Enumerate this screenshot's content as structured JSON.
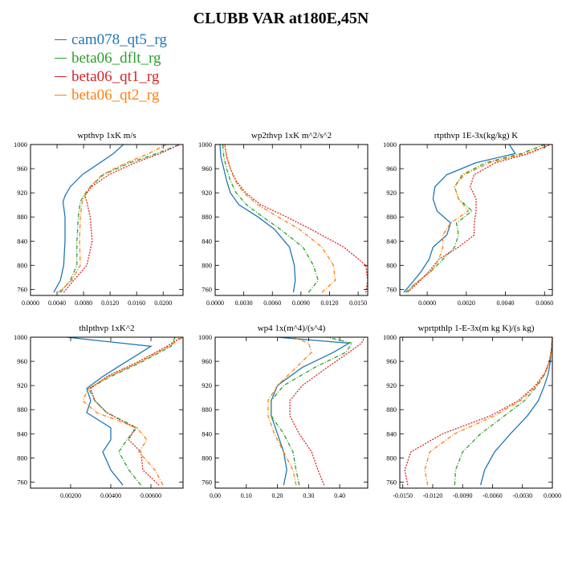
{
  "figure": {
    "title": "CLUBB VAR at180E,45N",
    "legend": [
      {
        "label": "cam078_qt5_rg",
        "color": "#1f77b4"
      },
      {
        "label": "beta06_dflt_rg",
        "color": "#2ca02c"
      },
      {
        "label": "beta06_qt1_rg",
        "color": "#d62728"
      },
      {
        "label": "beta06_qt2_rg",
        "color": "#ff7f0e"
      }
    ]
  },
  "chart_data": [
    {
      "type": "line",
      "title": "wpthvp   1xK m/s",
      "xlim": [
        0,
        0.023
      ],
      "ylim": [
        1000,
        750
      ],
      "xticks": [
        "0.0000",
        "0.0040",
        "0.0080",
        "0.0120",
        "0.0160",
        "0.0200"
      ],
      "xtick_values": [
        0,
        0.004,
        0.008,
        0.012,
        0.016,
        0.02
      ],
      "yticks": [
        "760",
        "800",
        "840",
        "880",
        "920",
        "960",
        "1000"
      ],
      "ytick_values": [
        760,
        800,
        840,
        880,
        920,
        960,
        1000
      ],
      "y": [
        755,
        775,
        800,
        840,
        880,
        905,
        915,
        930,
        950,
        970,
        985,
        1000
      ],
      "series": [
        {
          "name": "cam078_qt5_rg",
          "color": "#1f77b4",
          "style": "solid",
          "values": [
            0.0035,
            0.0045,
            0.005,
            0.0052,
            0.0052,
            0.0049,
            0.0052,
            0.006,
            0.0078,
            0.0105,
            0.0125,
            0.014
          ]
        },
        {
          "name": "beta06_dflt_rg",
          "color": "#2ca02c",
          "style": "dashdot",
          "values": [
            0.0045,
            0.006,
            0.007,
            0.007,
            0.0072,
            0.0075,
            0.008,
            0.009,
            0.011,
            0.015,
            0.019,
            0.0225
          ]
        },
        {
          "name": "beta06_qt1_rg",
          "color": "#d62728",
          "style": "dotted",
          "values": [
            0.005,
            0.0065,
            0.0085,
            0.0093,
            0.009,
            0.0085,
            0.0082,
            0.0092,
            0.0118,
            0.0158,
            0.0195,
            0.0225
          ]
        },
        {
          "name": "beta06_qt2_rg",
          "color": "#ff7f0e",
          "style": "dashdot",
          "values": [
            0.0042,
            0.0062,
            0.0075,
            0.0074,
            0.0075,
            0.0078,
            0.0082,
            0.009,
            0.0108,
            0.0145,
            0.0178,
            0.0205
          ]
        }
      ]
    },
    {
      "type": "line",
      "title": "wp2thvp   1xK m^2/s^2",
      "xlim": [
        0,
        0.016
      ],
      "ylim": [
        1000,
        750
      ],
      "xticks": [
        "0.0000",
        "0.0030",
        "0.0060",
        "0.0090",
        "0.0120",
        "0.0150"
      ],
      "xtick_values": [
        0,
        0.003,
        0.006,
        0.009,
        0.012,
        0.015
      ],
      "yticks": [
        "760",
        "800",
        "840",
        "880",
        "920",
        "960",
        "1000"
      ],
      "ytick_values": [
        760,
        800,
        840,
        880,
        920,
        960,
        1000
      ],
      "y": [
        755,
        775,
        800,
        830,
        860,
        880,
        900,
        920,
        940,
        960,
        980,
        1000
      ],
      "series": [
        {
          "name": "cam078_qt5_rg",
          "color": "#1f77b4",
          "style": "solid",
          "values": [
            0.0082,
            0.0084,
            0.0083,
            0.0078,
            0.0062,
            0.0045,
            0.0025,
            0.0016,
            0.0012,
            0.0009,
            0.0006,
            0.0005
          ]
        },
        {
          "name": "beta06_dflt_rg",
          "color": "#2ca02c",
          "style": "dashdot",
          "values": [
            0.0098,
            0.0108,
            0.0103,
            0.0092,
            0.0068,
            0.005,
            0.0033,
            0.0022,
            0.0016,
            0.0012,
            0.0009,
            0.0008
          ]
        },
        {
          "name": "beta06_qt1_rg",
          "color": "#d62728",
          "style": "dotted",
          "values": [
            0.0158,
            0.016,
            0.0158,
            0.0135,
            0.01,
            0.0075,
            0.0048,
            0.0032,
            0.0022,
            0.0016,
            0.0012,
            0.001
          ]
        },
        {
          "name": "beta06_qt2_rg",
          "color": "#ff7f0e",
          "style": "dashdot",
          "values": [
            0.0112,
            0.0126,
            0.0124,
            0.0112,
            0.0088,
            0.0066,
            0.0045,
            0.003,
            0.0021,
            0.0016,
            0.0012,
            0.001
          ]
        }
      ]
    },
    {
      "type": "line",
      "title": "rtpthvp   1E-3x(kg/kg) K",
      "xlim": [
        -0.0014,
        0.0064
      ],
      "ylim": [
        1000,
        750
      ],
      "xticks": [
        "0.0000",
        "0.0020",
        "0.0040",
        "0.0060"
      ],
      "xtick_values": [
        0,
        0.002,
        0.004,
        0.006
      ],
      "yticks": [
        "760",
        "800",
        "840",
        "880",
        "920",
        "960",
        "1000"
      ],
      "ytick_values": [
        760,
        800,
        840,
        880,
        920,
        960,
        1000
      ],
      "y": [
        755,
        770,
        790,
        810,
        830,
        850,
        870,
        890,
        910,
        930,
        950,
        970,
        985,
        1000
      ],
      "series": [
        {
          "name": "cam078_qt5_rg",
          "color": "#1f77b4",
          "style": "solid",
          "values": [
            -0.0012,
            -0.0008,
            -0.0003,
            0.0001,
            0.0003,
            0.001,
            0.0012,
            0.0005,
            0.0003,
            0.0004,
            0.001,
            0.0025,
            0.0045,
            0.0042
          ]
        },
        {
          "name": "beta06_dflt_rg",
          "color": "#2ca02c",
          "style": "dashdot",
          "values": [
            -0.0011,
            -0.0006,
            0.0002,
            0.0008,
            0.0014,
            0.0016,
            0.0015,
            0.0023,
            0.0016,
            0.0014,
            0.0018,
            0.003,
            0.0048,
            0.006
          ]
        },
        {
          "name": "beta06_qt1_rg",
          "color": "#d62728",
          "style": "dotted",
          "values": [
            -0.001,
            -0.0005,
            0.0001,
            0.0006,
            0.0016,
            0.0024,
            0.0024,
            0.0025,
            0.0025,
            0.0022,
            0.0024,
            0.0035,
            0.0052,
            0.0063
          ]
        },
        {
          "name": "beta06_qt2_rg",
          "color": "#ff7f0e",
          "style": "dashdot",
          "values": [
            -0.001,
            -0.0006,
            0.0002,
            0.0006,
            0.0008,
            0.0008,
            0.0012,
            0.0021,
            0.0016,
            0.0014,
            0.0019,
            0.0032,
            0.005,
            0.0063
          ]
        }
      ]
    },
    {
      "type": "line",
      "title": "thlpthvp   1xK^2",
      "xlim": [
        0,
        0.0076
      ],
      "ylim": [
        1000,
        750
      ],
      "xticks": [
        "0.00200",
        "0.00400",
        "0.00600"
      ],
      "xtick_values": [
        0.002,
        0.004,
        0.006
      ],
      "yticks": [
        "760",
        "800",
        "840",
        "880",
        "920",
        "960",
        "1000"
      ],
      "ytick_values": [
        760,
        800,
        840,
        880,
        920,
        960,
        1000
      ],
      "y": [
        755,
        780,
        810,
        830,
        850,
        875,
        895,
        915,
        935,
        960,
        985,
        1000
      ],
      "series": [
        {
          "name": "cam078_qt5_rg",
          "color": "#1f77b4",
          "style": "solid",
          "values": [
            0.0046,
            0.004,
            0.0036,
            0.004,
            0.004,
            0.0028,
            0.003,
            0.0028,
            0.0036,
            0.0048,
            0.006,
            0.0018
          ]
        },
        {
          "name": "beta06_dflt_rg",
          "color": "#2ca02c",
          "style": "dashdot",
          "values": [
            0.0055,
            0.0049,
            0.0044,
            0.0048,
            0.0053,
            0.0038,
            0.0032,
            0.0029,
            0.004,
            0.0056,
            0.007,
            0.0072
          ]
        },
        {
          "name": "beta06_qt1_rg",
          "color": "#d62728",
          "style": "dotted",
          "values": [
            0.0064,
            0.0056,
            0.0055,
            0.0049,
            0.0052,
            0.0038,
            0.0032,
            0.003,
            0.0038,
            0.0054,
            0.0068,
            0.0075
          ]
        },
        {
          "name": "beta06_qt2_rg",
          "color": "#ff7f0e",
          "style": "dashdot",
          "values": [
            0.0066,
            0.0062,
            0.0054,
            0.0058,
            0.0053,
            0.0033,
            0.0026,
            0.0029,
            0.0039,
            0.0055,
            0.0069,
            0.0076
          ]
        }
      ]
    },
    {
      "type": "line",
      "title": "wp4   1x(m^4)/(s^4)",
      "xlim": [
        0,
        0.49
      ],
      "ylim": [
        1000,
        750
      ],
      "xticks": [
        "0.00",
        "0.10",
        "0.20",
        "0.30",
        "0.40"
      ],
      "xtick_values": [
        0,
        0.1,
        0.2,
        0.3,
        0.4
      ],
      "yticks": [
        "760",
        "800",
        "840",
        "880",
        "920",
        "960",
        "1000"
      ],
      "ytick_values": [
        760,
        800,
        840,
        880,
        920,
        960,
        1000
      ],
      "y": [
        755,
        780,
        810,
        840,
        870,
        895,
        920,
        950,
        975,
        990,
        1000
      ],
      "series": [
        {
          "name": "cam078_qt5_rg",
          "color": "#1f77b4",
          "style": "solid",
          "values": [
            0.22,
            0.23,
            0.22,
            0.2,
            0.18,
            0.18,
            0.2,
            0.28,
            0.38,
            0.43,
            0.2
          ]
        },
        {
          "name": "beta06_dflt_rg",
          "color": "#2ca02c",
          "style": "dashdot",
          "values": [
            0.27,
            0.26,
            0.25,
            0.22,
            0.18,
            0.18,
            0.22,
            0.32,
            0.42,
            0.44,
            0.36
          ]
        },
        {
          "name": "beta06_qt1_rg",
          "color": "#d62728",
          "style": "dotted",
          "values": [
            0.35,
            0.33,
            0.31,
            0.27,
            0.24,
            0.24,
            0.28,
            0.36,
            0.43,
            0.47,
            0.48
          ]
        },
        {
          "name": "beta06_qt2_rg",
          "color": "#ff7f0e",
          "style": "dashdot",
          "values": [
            0.26,
            0.25,
            0.22,
            0.19,
            0.17,
            0.17,
            0.2,
            0.26,
            0.31,
            0.3,
            0.25
          ]
        }
      ]
    },
    {
      "type": "line",
      "title": "wprtpthlp   1-E-3x(m kg K)/(s kg)",
      "xlim": [
        -0.0153,
        0
      ],
      "ylim": [
        1000,
        750
      ],
      "xticks": [
        "-0.0150",
        "-0.0120",
        "-0.0090",
        "-0.0060",
        "-0.0030",
        "0.0000"
      ],
      "xtick_values": [
        -0.015,
        -0.012,
        -0.009,
        -0.006,
        -0.003,
        0
      ],
      "yticks": [
        "760",
        "800",
        "840",
        "880",
        "920",
        "960",
        "1000"
      ],
      "ytick_values": [
        760,
        800,
        840,
        880,
        920,
        960,
        1000
      ],
      "y": [
        755,
        780,
        810,
        840,
        870,
        895,
        920,
        940,
        960,
        980,
        1000
      ],
      "series": [
        {
          "name": "cam078_qt5_rg",
          "color": "#1f77b4",
          "style": "solid",
          "values": [
            -0.0072,
            -0.0068,
            -0.0058,
            -0.0042,
            -0.0025,
            -0.0014,
            -0.0008,
            -0.0004,
            -0.0002,
            -0.0001,
            0
          ]
        },
        {
          "name": "beta06_dflt_rg",
          "color": "#2ca02c",
          "style": "dashdot",
          "values": [
            -0.0098,
            -0.0097,
            -0.009,
            -0.0072,
            -0.0048,
            -0.0028,
            -0.0015,
            -0.0007,
            -0.0003,
            -0.0001,
            0
          ]
        },
        {
          "name": "beta06_qt1_rg",
          "color": "#d62728",
          "style": "dotted",
          "values": [
            -0.0145,
            -0.0148,
            -0.0142,
            -0.011,
            -0.0062,
            -0.0034,
            -0.0017,
            -0.0008,
            -0.0003,
            -0.0001,
            0
          ]
        },
        {
          "name": "beta06_qt2_rg",
          "color": "#ff7f0e",
          "style": "dashdot",
          "values": [
            -0.0125,
            -0.0128,
            -0.0123,
            -0.0098,
            -0.0058,
            -0.0032,
            -0.0016,
            -0.0007,
            -0.0003,
            -0.0001,
            0
          ]
        }
      ]
    }
  ]
}
